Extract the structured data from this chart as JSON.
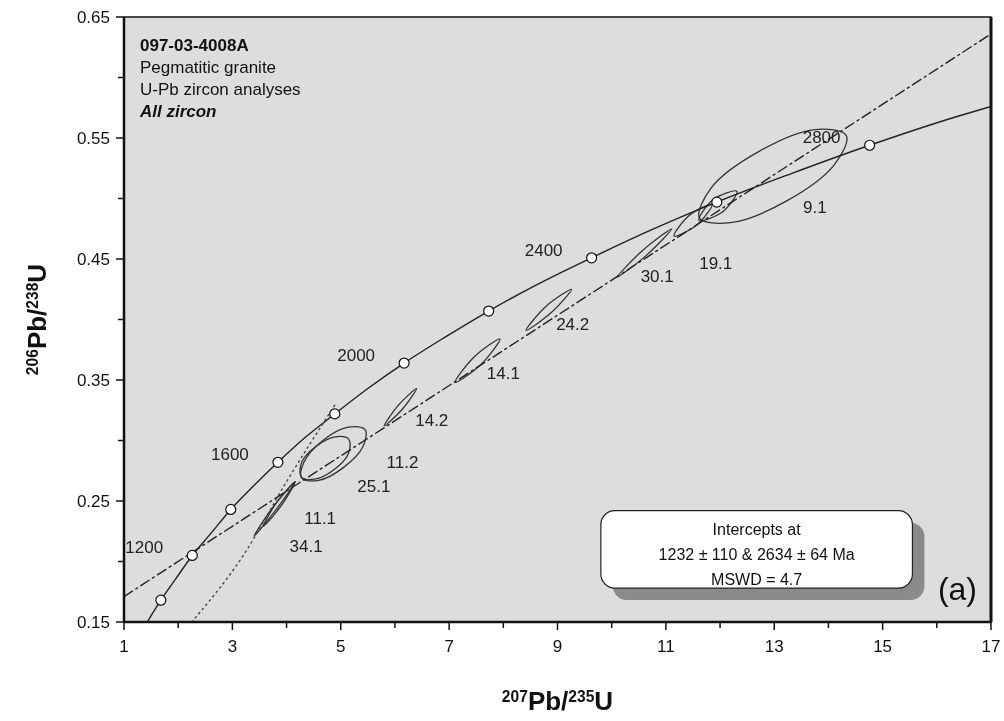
{
  "chart_data": {
    "type": "line",
    "title": "097-03-4008A",
    "subtitle": "Pegmatitic granite",
    "xlabel": "$^{207}$Pb/$^{235}$U",
    "ylabel": "$^{206}$Pb/$^{238}$U",
    "xlim": [
      1,
      17
    ],
    "ylim": [
      0.15,
      0.65
    ],
    "xticks": [
      1,
      {
        "value": 2,
        "label": null
      },
      3,
      {
        "value": 4,
        "label": null
      },
      5,
      {
        "value": 6,
        "label": null
      },
      7,
      {
        "value": 8,
        "label": null
      },
      9,
      {
        "value": 10,
        "label": null
      },
      11,
      {
        "value": 12,
        "label": null
      },
      13,
      {
        "value": 14,
        "label": null
      },
      15,
      {
        "value": 16,
        "label": null
      },
      17
    ],
    "yticks": [
      0.15,
      {
        "value": 0.2,
        "label": null
      },
      0.25,
      {
        "value": 0.3,
        "label": null
      },
      0.35,
      {
        "value": 0.4,
        "label": null
      },
      0.45,
      {
        "value": 0.5,
        "label": null
      },
      0.55,
      {
        "value": 0.6,
        "label": null
      },
      0.65
    ],
    "grid": false,
    "series": [
      {
        "color": "#222222",
        "line_style": "solid",
        "x": [
          1.43,
          1.68,
          1.96,
          2.26,
          2.6,
          2.97,
          3.38,
          3.84,
          4.33,
          4.89,
          5.5,
          6.17,
          6.91,
          7.73,
          8.63,
          9.63,
          10.73,
          11.94,
          13.28,
          14.76,
          16.39,
          17.0
        ],
        "values": [
          0.15,
          0.168,
          0.186,
          0.205,
          0.223,
          0.243,
          0.262,
          0.282,
          0.302,
          0.322,
          0.343,
          0.364,
          0.385,
          0.407,
          0.429,
          0.451,
          0.474,
          0.497,
          0.52,
          0.544,
          0.568,
          0.576
        ]
      },
      {
        "color": "#222222",
        "line_style": "dashed",
        "x": [
          1,
          17
        ],
        "values": [
          0.171,
          0.636
        ]
      },
      {
        "color": "#444444",
        "line_style": "dotted",
        "x": [
          2.25,
          3.2,
          4.0,
          4.9
        ],
        "values": [
          0.15,
          0.205,
          0.266,
          0.33
        ]
      },
      {
        "type": "scatter",
        "color": "#ffffff",
        "marker": "circle",
        "x": [
          1.68,
          2.26,
          2.97,
          3.84,
          4.89,
          6.17,
          7.73,
          9.63,
          11.94,
          14.76
        ],
        "values": [
          0.168,
          0.205,
          0.243,
          0.282,
          0.322,
          0.364,
          0.407,
          0.451,
          0.497,
          0.544
        ]
      }
    ],
    "annotations": [
      "U-Pb zircon analyses",
      "All zircon",
      "Intercepts at",
      "1232  ± 110 & 2634 ± 64  Ma",
      "MSWD = 4.7",
      "(a)",
      "34.1",
      "11.1",
      "25.1",
      "11.2",
      "14.2",
      "14.1",
      "24.2",
      "30.1",
      "19.1",
      "9.1",
      {
        "text": "1200",
        "x": 2.26,
        "y": 0.205
      },
      {
        "text": "1600",
        "x": 3.84,
        "y": 0.282
      },
      {
        "text": "2000",
        "x": 6.17,
        "y": 0.364
      },
      {
        "text": "2400",
        "x": 9.63,
        "y": 0.451
      },
      {
        "text": "2800",
        "x": 14.76,
        "y": 0.544
      }
    ]
  }
}
